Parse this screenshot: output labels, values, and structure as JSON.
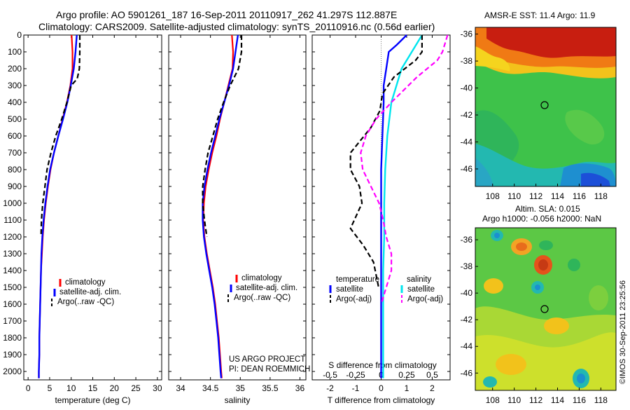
{
  "header": {
    "line1": "Argo profile: AO 5901261_187 16-Sep-2011 20110917_262 41.297S 112.887E",
    "line2": "Climatology: CARS2009. Satellite-adjusted climatology: synTS_20110916.nc (0.56d earlier)"
  },
  "credit": {
    "project": "US ARGO PROJECT",
    "pi": "PI: DEAN ROEMMICH",
    "imos": "©IMOS 30-Sep-2011 23:25:56"
  },
  "depth_ticks": [
    "0",
    "100",
    "200",
    "300",
    "400",
    "500",
    "600",
    "700",
    "800",
    "900",
    "1000",
    "1100",
    "1200",
    "1300",
    "1400",
    "1500",
    "1600",
    "1700",
    "1800",
    "1900",
    "2000"
  ],
  "legend_profile": {
    "climatology": "climatology",
    "satellite": "satellite-adj. clim.",
    "argo": "Argo(..raw -QC)"
  },
  "legend_diff": {
    "temperature": "temperature",
    "salinity": "salinity",
    "satellite": "satellite",
    "argo": "Argo(-adj)"
  },
  "map_sst": {
    "title": "AMSR-E SST: 11.4  Argo: 11.9",
    "yticks": [
      "-36",
      "-38",
      "-40",
      "-42",
      "-44",
      "-46"
    ],
    "xticks": [
      "108",
      "110",
      "112",
      "114",
      "116",
      "118"
    ]
  },
  "map_sla": {
    "title1": "Altim. SLA: 0.015",
    "title2": "Argo h1000: -0.056 h2000: NaN",
    "yticks": [
      "-36",
      "-38",
      "-40",
      "-42",
      "-44",
      "-46"
    ],
    "xticks": [
      "108",
      "110",
      "112",
      "114",
      "116",
      "118"
    ]
  },
  "colors": {
    "climatology": "#ff0000",
    "satellite": "#0000ff",
    "argo": "#000000",
    "sal_satellite": "#00e5ee",
    "sal_argo": "#ff00ff"
  },
  "chart_data": [
    {
      "type": "line",
      "xlabel": "temperature (deg C)",
      "ylabel": "",
      "xlim": [
        -1,
        31
      ],
      "ylim": [
        2050,
        0
      ],
      "xticks": [
        "0",
        "5",
        "10",
        "15",
        "20",
        "25",
        "30"
      ],
      "series": [
        {
          "name": "climatology",
          "x": [
            10.1,
            10.3,
            10.3,
            9.8,
            9.0,
            8.0,
            7.0,
            6.0,
            5.2,
            4.6,
            4.1,
            3.7,
            3.4,
            3.2,
            3.0,
            2.9,
            2.8,
            2.7,
            2.6,
            2.6,
            2.5,
            2.5
          ],
          "y": [
            0,
            100,
            200,
            300,
            400,
            500,
            600,
            700,
            800,
            900,
            1000,
            1100,
            1200,
            1300,
            1400,
            1500,
            1600,
            1700,
            1800,
            1900,
            2000,
            2040
          ]
        },
        {
          "name": "satellite-adj. clim.",
          "x": [
            11.3,
            11.0,
            10.6,
            9.9,
            9.1,
            8.1,
            7.0,
            6.0,
            5.1,
            4.5,
            4.0,
            3.6,
            3.3,
            3.1,
            3.0,
            2.9,
            2.8,
            2.7,
            2.6,
            2.6,
            2.5,
            2.5
          ],
          "y": [
            0,
            100,
            200,
            300,
            400,
            500,
            600,
            700,
            800,
            900,
            1000,
            1100,
            1200,
            1300,
            1400,
            1500,
            1600,
            1700,
            1800,
            1900,
            2000,
            2040
          ]
        },
        {
          "name": "Argo(..raw -QC)",
          "x": [
            12.0,
            12.0,
            11.9,
            11.4,
            10.0,
            9.0,
            7.8,
            6.4,
            5.3,
            4.4,
            3.9,
            3.4,
            3.1,
            3.0
          ],
          "y": [
            0,
            100,
            200,
            260,
            300,
            400,
            500,
            600,
            700,
            800,
            900,
            1000,
            1100,
            1200
          ]
        }
      ]
    },
    {
      "type": "line",
      "xlabel": "salinity",
      "ylabel": "",
      "xlim": [
        33.8,
        36.1
      ],
      "ylim": [
        2050,
        0
      ],
      "xticks": [
        "34",
        "34.5",
        "35",
        "35.5",
        "36"
      ],
      "series": [
        {
          "name": "climatology",
          "x": [
            34.86,
            34.88,
            34.87,
            34.8,
            34.73,
            34.66,
            34.6,
            34.53,
            34.47,
            34.42,
            34.39,
            34.38,
            34.4,
            34.44,
            34.49,
            34.54,
            34.58,
            34.61,
            34.64,
            34.66,
            34.68,
            34.69
          ],
          "y": [
            0,
            100,
            200,
            300,
            400,
            500,
            600,
            700,
            800,
            900,
            1000,
            1100,
            1200,
            1300,
            1400,
            1500,
            1600,
            1700,
            1800,
            1900,
            2000,
            2040
          ]
        },
        {
          "name": "satellite-adj. clim.",
          "x": [
            34.96,
            34.92,
            34.88,
            34.81,
            34.73,
            34.65,
            34.58,
            34.51,
            34.45,
            34.4,
            34.37,
            34.37,
            34.39,
            34.43,
            34.48,
            34.53,
            34.57,
            34.6,
            34.63,
            34.65,
            34.67,
            34.68
          ],
          "y": [
            0,
            100,
            200,
            300,
            400,
            500,
            600,
            700,
            800,
            900,
            1000,
            1100,
            1200,
            1300,
            1400,
            1500,
            1600,
            1700,
            1800,
            1900,
            2000,
            2040
          ]
        },
        {
          "name": "Argo(..raw -QC)",
          "x": [
            35.02,
            35.02,
            34.97,
            34.83,
            34.72,
            34.62,
            34.54,
            34.46,
            34.41,
            34.37,
            34.37,
            34.4,
            34.44
          ],
          "y": [
            0,
            100,
            200,
            300,
            400,
            500,
            600,
            700,
            800,
            900,
            1000,
            1100,
            1200
          ]
        }
      ]
    },
    {
      "type": "line",
      "xlabel": "T difference from climatology",
      "xlabel_top": "S difference from climatology",
      "xlim": [
        -2.7,
        2.7
      ],
      "ylim": [
        2050,
        0
      ],
      "xticks": [
        "-2",
        "-1",
        "0",
        "1",
        "2"
      ],
      "xticks_top": [
        "-0.5",
        "-0.25",
        "0",
        "0.25",
        "0.5"
      ],
      "series": [
        {
          "name": "temperature satellite",
          "x": [
            1.0,
            0.6,
            0.3,
            0.2,
            0.1,
            0.1,
            0.05,
            0.0,
            0.0,
            0.0,
            0.0,
            0.0,
            0.0,
            0.0,
            0.0,
            0.0
          ],
          "y": [
            0,
            60,
            100,
            200,
            300,
            400,
            600,
            800,
            1000,
            1200,
            1400,
            1600,
            1800,
            1900,
            2000,
            2040
          ]
        },
        {
          "name": "salinity satellite",
          "x": [
            0.4,
            0.3,
            0.2,
            0.15,
            0.1,
            0.06,
            0.04,
            0.03,
            0.03,
            0.02,
            0.02,
            0.02,
            0.02,
            0.02,
            0.02
          ],
          "y": [
            0,
            100,
            200,
            300,
            400,
            600,
            800,
            1000,
            1200,
            1400,
            1600,
            1800,
            1900,
            2000,
            2040
          ]
        },
        {
          "name": "temperature Argo(-adj)",
          "x": [
            1.6,
            1.6,
            1.35,
            0.5,
            0.05,
            -0.05,
            -0.4,
            -1.2,
            -1.2,
            -0.85,
            -0.75,
            -1.2,
            -0.7,
            -0.3,
            -0.1
          ],
          "y": [
            0,
            100,
            150,
            250,
            350,
            450,
            550,
            700,
            800,
            900,
            1000,
            1150,
            1250,
            1350,
            1500
          ]
        },
        {
          "name": "salinity Argo(-adj)",
          "x": [
            0.65,
            0.6,
            0.55,
            0.35,
            0.1,
            -0.05,
            -0.15,
            -0.2,
            -0.18,
            -0.1,
            -0.02,
            0.02,
            0.05,
            0.1,
            0.1,
            0.05,
            0.0
          ],
          "y": [
            0,
            100,
            150,
            250,
            400,
            500,
            600,
            700,
            800,
            900,
            1000,
            1100,
            1200,
            1300,
            1400,
            1500,
            1600
          ]
        }
      ]
    }
  ]
}
